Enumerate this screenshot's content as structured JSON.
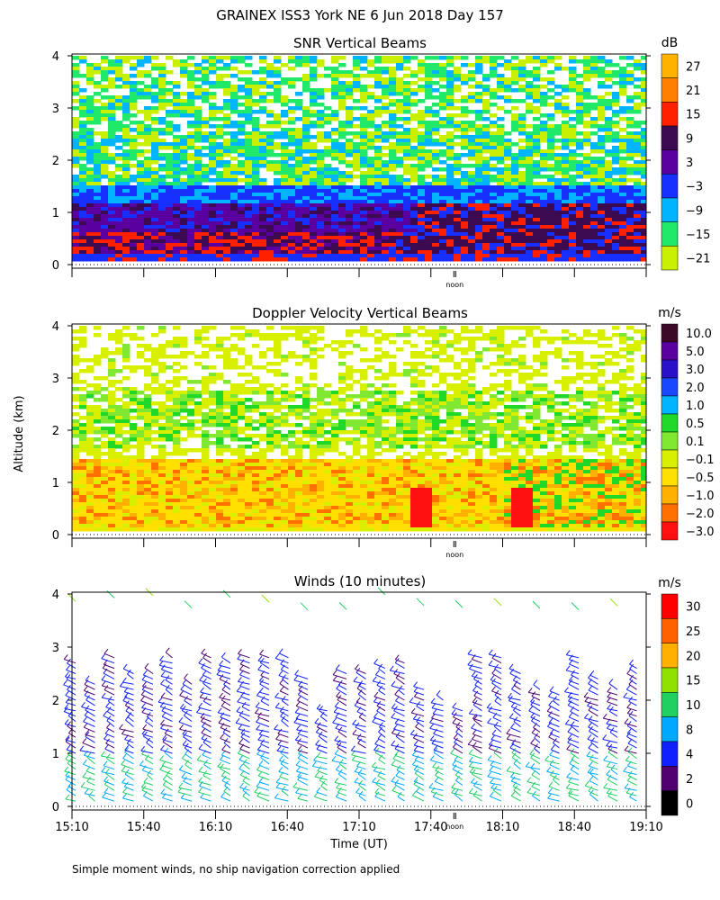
{
  "figure": {
    "title": "GRAINEX ISS3 York NE   6 Jun 2018 Day 157",
    "y_label": "Altitude (km)",
    "x_label": "Time (UT)",
    "footnote": "Simple moment winds, no ship navigation correction applied",
    "noon_label": "noon"
  },
  "chart_data": [
    {
      "type": "heatmap",
      "title": "SNR Vertical Beams",
      "colorbar_unit": "dB",
      "ylim": [
        0,
        4
      ],
      "y_ticks": [
        "0",
        "1",
        "2",
        "3",
        "4"
      ],
      "colorbar_labels": [
        "27",
        "21",
        "15",
        "9",
        "3",
        "−3",
        "−9",
        "−15",
        "−21"
      ],
      "colorbar_colors": [
        "#ffb300",
        "#ff8000",
        "#ff2000",
        "#3c0a50",
        "#5a00a0",
        "#1830ff",
        "#00b4ff",
        "#20e868",
        "#c8f000"
      ],
      "layers": [
        {
          "altitude_km": [
            0.15,
            0.6
          ],
          "level_db": 9
        },
        {
          "altitude_km": [
            0.6,
            1.2
          ],
          "level_db": 3
        },
        {
          "altitude_km": [
            1.2,
            1.5
          ],
          "level_db": -3
        },
        {
          "altitude_km": [
            1.5,
            2.6
          ],
          "level_db": -9
        },
        {
          "altitude_km": [
            2.6,
            4.0
          ],
          "level_db": -21
        }
      ]
    },
    {
      "type": "heatmap",
      "title": "Doppler Velocity Vertical Beams",
      "colorbar_unit": "m/s",
      "ylim": [
        0,
        4
      ],
      "y_ticks": [
        "0",
        "1",
        "2",
        "3",
        "4"
      ],
      "colorbar_labels": [
        "10.0",
        "5.0",
        "3.0",
        "2.0",
        "1.0",
        "0.5",
        "0.1",
        "−0.1",
        "−0.5",
        "−1.0",
        "−2.0",
        "−3.0"
      ],
      "colorbar_colors": [
        "#3c0a28",
        "#5a00a0",
        "#2a10c8",
        "#1848ff",
        "#00b4ff",
        "#20d828",
        "#80e830",
        "#d8f000",
        "#ffe000",
        "#ffb000",
        "#ff7000",
        "#ff1010"
      ],
      "layers": [
        {
          "altitude_km": [
            0.15,
            1.45
          ],
          "level_ms": -0.5
        },
        {
          "altitude_km": [
            1.45,
            2.7
          ],
          "level_ms": 0.1
        },
        {
          "altitude_km": [
            2.7,
            4.0
          ],
          "level_ms": 0.1
        }
      ]
    },
    {
      "type": "barbs",
      "title": "Winds (10 minutes)",
      "colorbar_unit": "m/s",
      "ylim": [
        0,
        4
      ],
      "y_ticks": [
        "0",
        "1",
        "2",
        "3",
        "4"
      ],
      "colorbar_labels": [
        "30",
        "25",
        "20",
        "15",
        "10",
        "8",
        "4",
        "2",
        "0"
      ],
      "colorbar_colors": [
        "#ff0000",
        "#ff6000",
        "#ffb000",
        "#90e000",
        "#20d060",
        "#00a8ff",
        "#1020ff",
        "#500070",
        "#000000"
      ],
      "x_ticks": [
        "15:10",
        "15:40",
        "16:10",
        "16:40",
        "17:10",
        "17:40",
        "18:10",
        "18:40",
        "19:10"
      ],
      "time_range_hours_ut": [
        15.1667,
        19.1667
      ]
    }
  ]
}
